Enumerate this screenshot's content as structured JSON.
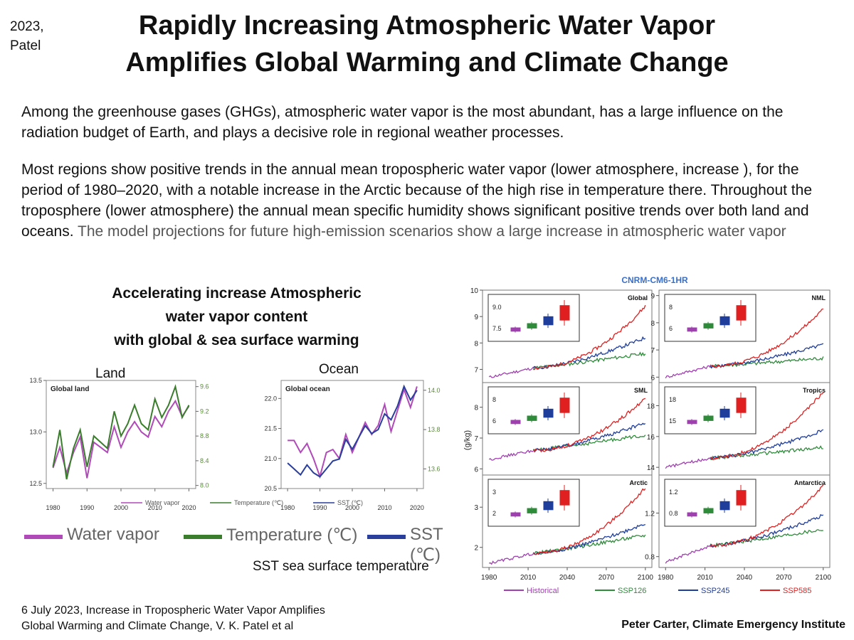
{
  "cite_tag": [
    "2023,",
    "Patel"
  ],
  "title": [
    "Rapidly Increasing Atmospheric Water Vapor",
    "Amplifies Global Warming and Climate Change"
  ],
  "para1": "Among the greenhouse gases (GHGs), atmospheric water vapor is the most abundant, has a large influence on the radiation budget of Earth, and plays a decisive role in regional weather processes.",
  "para2_main": "Most regions show positive trends in the annual mean tropospheric water vapor (lower atmosphere, increase ), for the period of 1980–2020, with a notable increase in the Arctic because of the high rise in temperature there. Throughout the troposphere (lower atmosphere) the annual mean specific humidity shows significant positive trends over both land and oceans.",
  "para2_gray": "The model projections for future high-emission scenarios show a large increase in atmospheric water vapor",
  "sub_title": [
    "Accelerating increase Atmospheric",
    "water vapor content",
    "with global & sea surface warming"
  ],
  "land_label": "Land",
  "ocean_label": "Ocean",
  "big_legend": {
    "water_vapor": "Water vapor",
    "temperature": "Temperature (℃)",
    "sst": "SST (℃)"
  },
  "sst_note": "SST sea surface temperature",
  "footer_ref": [
    "6 July 2023, Increase in Tropospheric Water Vapor Amplifies",
    "Global Warming and Climate Change, V. K. Patel et al"
  ],
  "credit": "Peter Carter,  Climate Emergency Institute",
  "colors": {
    "water_vapor": "#b04ab8",
    "temperature": "#3a7d2c",
    "sst": "#2a3e9c",
    "historical": "#a040b0",
    "ssp126": "#2e8b3a",
    "ssp245": "#1f3d9a",
    "ssp585": "#e02020",
    "right_axis": "#5a8a3a"
  },
  "chart_data": [
    {
      "type": "line",
      "title": "Global land",
      "x": [
        1980,
        1982,
        1984,
        1986,
        1988,
        1990,
        1992,
        1994,
        1996,
        1998,
        2000,
        2002,
        2004,
        2006,
        2008,
        2010,
        2012,
        2014,
        2016,
        2018,
        2020
      ],
      "series": [
        {
          "name": "Water vapor",
          "axis": "left",
          "values": [
            12.65,
            12.85,
            12.6,
            12.8,
            12.95,
            12.55,
            12.9,
            12.85,
            12.8,
            13.05,
            12.85,
            13.0,
            13.1,
            13.0,
            12.95,
            13.15,
            13.05,
            13.2,
            13.3,
            13.15,
            13.25
          ]
        },
        {
          "name": "Temperature (℃)",
          "axis": "right",
          "values": [
            8.3,
            8.9,
            8.1,
            8.6,
            8.9,
            8.3,
            8.8,
            8.7,
            8.6,
            9.2,
            8.8,
            9.0,
            9.3,
            9.0,
            8.9,
            9.4,
            9.1,
            9.3,
            9.6,
            9.1,
            9.3
          ]
        }
      ],
      "xlim": [
        1978,
        2022
      ],
      "ylim": [
        12.45,
        13.5
      ],
      "y_ticks": [
        12.5,
        13.0,
        13.5
      ],
      "y2lim": [
        7.95,
        9.7
      ],
      "y2_ticks": [
        8.0,
        8.4,
        8.8,
        9.2,
        9.6
      ],
      "x_ticks": [
        1980,
        1990,
        2000,
        2010,
        2020
      ],
      "legend": [
        "Water vapor",
        "Temperature (℃)"
      ]
    },
    {
      "type": "line",
      "title": "Global ocean",
      "x": [
        1980,
        1982,
        1984,
        1986,
        1988,
        1990,
        1992,
        1994,
        1996,
        1998,
        2000,
        2002,
        2004,
        2006,
        2008,
        2010,
        2012,
        2014,
        2016,
        2018,
        2020
      ],
      "series": [
        {
          "name": "Water vapor",
          "axis": "left",
          "values": [
            21.3,
            21.3,
            21.1,
            21.25,
            21.0,
            20.7,
            21.1,
            21.15,
            21.0,
            21.4,
            21.1,
            21.35,
            21.6,
            21.4,
            21.55,
            21.9,
            21.45,
            21.8,
            22.15,
            21.85,
            22.2
          ]
        },
        {
          "name": "SST (℃)",
          "axis": "right",
          "values": [
            13.63,
            13.6,
            13.57,
            13.62,
            13.58,
            13.56,
            13.6,
            13.64,
            13.65,
            13.75,
            13.7,
            13.76,
            13.82,
            13.78,
            13.8,
            13.88,
            13.85,
            13.92,
            14.02,
            13.95,
            14.0
          ]
        }
      ],
      "xlim": [
        1978,
        2022
      ],
      "ylim": [
        20.5,
        22.3
      ],
      "y_ticks": [
        20.5,
        21.0,
        21.5,
        22.0
      ],
      "y2lim": [
        13.5,
        14.05
      ],
      "y2_ticks": [
        13.6,
        13.8,
        14.0
      ],
      "x_ticks": [
        1980,
        1990,
        2000,
        2010,
        2020
      ],
      "legend": [
        "Water vapor",
        "SST (℃)"
      ]
    },
    {
      "type": "line",
      "title": "CNRM-CM6-1HR",
      "ylabel": "(g/kg)",
      "x_ticks": [
        1980,
        2010,
        2040,
        2070,
        2100
      ],
      "legend": [
        "Historical",
        "SSP126",
        "SSP245",
        "SSP585"
      ],
      "panels": [
        {
          "name": "Global",
          "ylim": [
            6.5,
            10.0
          ],
          "y_ticks": [
            7,
            8,
            9,
            10
          ],
          "hist": [
            6.7,
            7.05
          ],
          "end": {
            "SSP126": 7.6,
            "SSP245": 8.2,
            "SSP585": 9.4
          },
          "inset_ticks": [
            "7.5",
            "9.0"
          ]
        },
        {
          "name": "NML",
          "ylim": [
            5.8,
            9.2
          ],
          "y_ticks": [
            6,
            7,
            8,
            9
          ],
          "hist": [
            6.0,
            6.4
          ],
          "end": {
            "SSP126": 6.7,
            "SSP245": 7.2,
            "SSP585": 8.5
          },
          "inset_ticks": [
            "6",
            "8"
          ]
        },
        {
          "name": "SML",
          "ylim": [
            5.8,
            8.8
          ],
          "y_ticks": [
            6,
            7,
            8
          ],
          "hist": [
            6.3,
            6.6
          ],
          "end": {
            "SSP126": 7.1,
            "SSP245": 7.5,
            "SSP585": 8.3
          },
          "inset_ticks": [
            "6",
            "8"
          ]
        },
        {
          "name": "Tropics",
          "ylim": [
            13.5,
            19.5
          ],
          "y_ticks": [
            14,
            16,
            18
          ],
          "hist": [
            14.0,
            14.6
          ],
          "end": {
            "SSP126": 15.3,
            "SSP245": 16.4,
            "SSP585": 18.9
          },
          "inset_ticks": [
            "15",
            "18"
          ]
        },
        {
          "name": "Arctic",
          "ylim": [
            1.5,
            3.8
          ],
          "y_ticks": [
            2,
            3
          ],
          "hist": [
            1.6,
            1.85
          ],
          "end": {
            "SSP126": 2.3,
            "SSP245": 2.6,
            "SSP585": 3.5
          },
          "inset_ticks": [
            "2",
            "3"
          ]
        },
        {
          "name": "Antarctica",
          "ylim": [
            0.7,
            1.55
          ],
          "y_ticks": [
            0.8,
            1.2
          ],
          "hist": [
            0.75,
            0.9
          ],
          "end": {
            "SSP126": 1.05,
            "SSP245": 1.18,
            "SSP585": 1.45
          },
          "inset_ticks": [
            "0.8",
            "1.2"
          ]
        }
      ]
    }
  ]
}
